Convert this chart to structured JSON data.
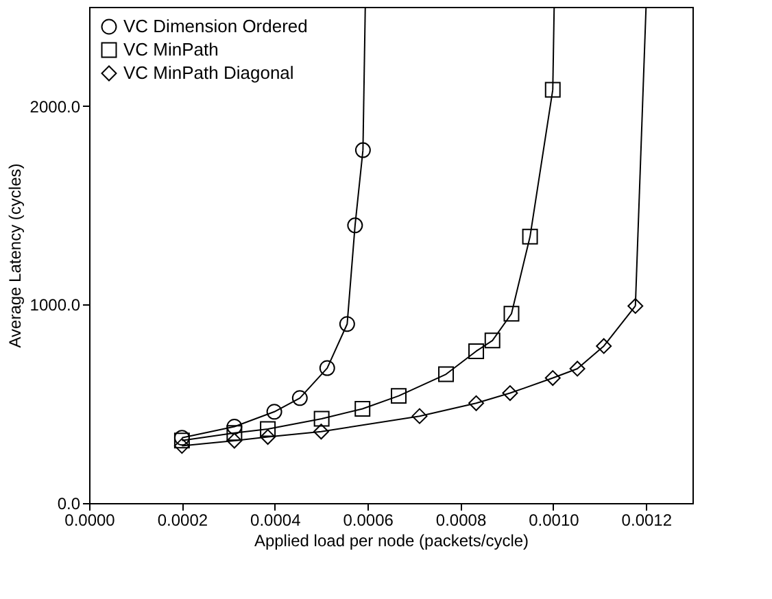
{
  "chart_data": {
    "type": "line",
    "xlabel": "Applied load per node (packets/cycle)",
    "ylabel": "Average Latency (cycles)",
    "xlim": [
      0,
      0.0013
    ],
    "ylim": [
      0,
      2500
    ],
    "xticks": [
      {
        "value": 0,
        "label": "0.0000"
      },
      {
        "value": 0.0002,
        "label": "0.0002"
      },
      {
        "value": 0.0004,
        "label": "0.0004"
      },
      {
        "value": 0.0006,
        "label": "0.0006"
      },
      {
        "value": 0.0008,
        "label": "0.0008"
      },
      {
        "value": 0.001,
        "label": "0.0010"
      },
      {
        "value": 0.0012,
        "label": "0.0012"
      }
    ],
    "yticks": [
      {
        "value": 0,
        "label": "0.0"
      },
      {
        "value": 1000,
        "label": "1000.0"
      },
      {
        "value": 2000,
        "label": "2000.0"
      }
    ],
    "grid": false,
    "legend": "top left",
    "series": [
      {
        "name": "VC Dimension Ordered",
        "color": "#000000",
        "marker": "circle",
        "x": [
          0.0002,
          0.000313,
          0.000399,
          0.000454,
          0.000513,
          0.000556,
          0.000573,
          0.00059
        ],
        "values": [
          329,
          385,
          460,
          529,
          680,
          902,
          1399,
          1778
        ]
      },
      {
        "name": "VC MinPath",
        "color": "#000000",
        "marker": "square",
        "x": [
          0.0002,
          0.000313,
          0.000385,
          0.000501,
          0.000589,
          0.000667,
          0.000769,
          0.000834,
          0.000869,
          0.00091,
          0.00095,
          0.000999
        ],
        "values": [
          315,
          353,
          373,
          425,
          475,
          540,
          649,
          765,
          819,
          954,
          1342,
          2082
        ]
      },
      {
        "name": "VC MinPath Diagonal",
        "color": "#000000",
        "marker": "diamond",
        "x": [
          0.0002,
          0.000313,
          0.000385,
          0.0005,
          0.000712,
          0.000834,
          0.000907,
          0.000999,
          0.001052,
          0.001109,
          0.001177
        ],
        "values": [
          288,
          314,
          333,
          360,
          438,
          503,
          554,
          630,
          677,
          791,
          993
        ]
      },
      {
        "color": "#000000",
        "marker": "none",
        "x": [
          0.00059,
          0.000595
        ],
        "values": [
          1778,
          2500
        ]
      },
      {
        "color": "#000000",
        "marker": "none",
        "x": [
          0.000999,
          0.001002
        ],
        "values": [
          2082,
          2500
        ]
      },
      {
        "color": "#000000",
        "marker": "none",
        "x": [
          0.001177,
          0.0012
        ],
        "values": [
          993,
          2500
        ]
      }
    ]
  }
}
